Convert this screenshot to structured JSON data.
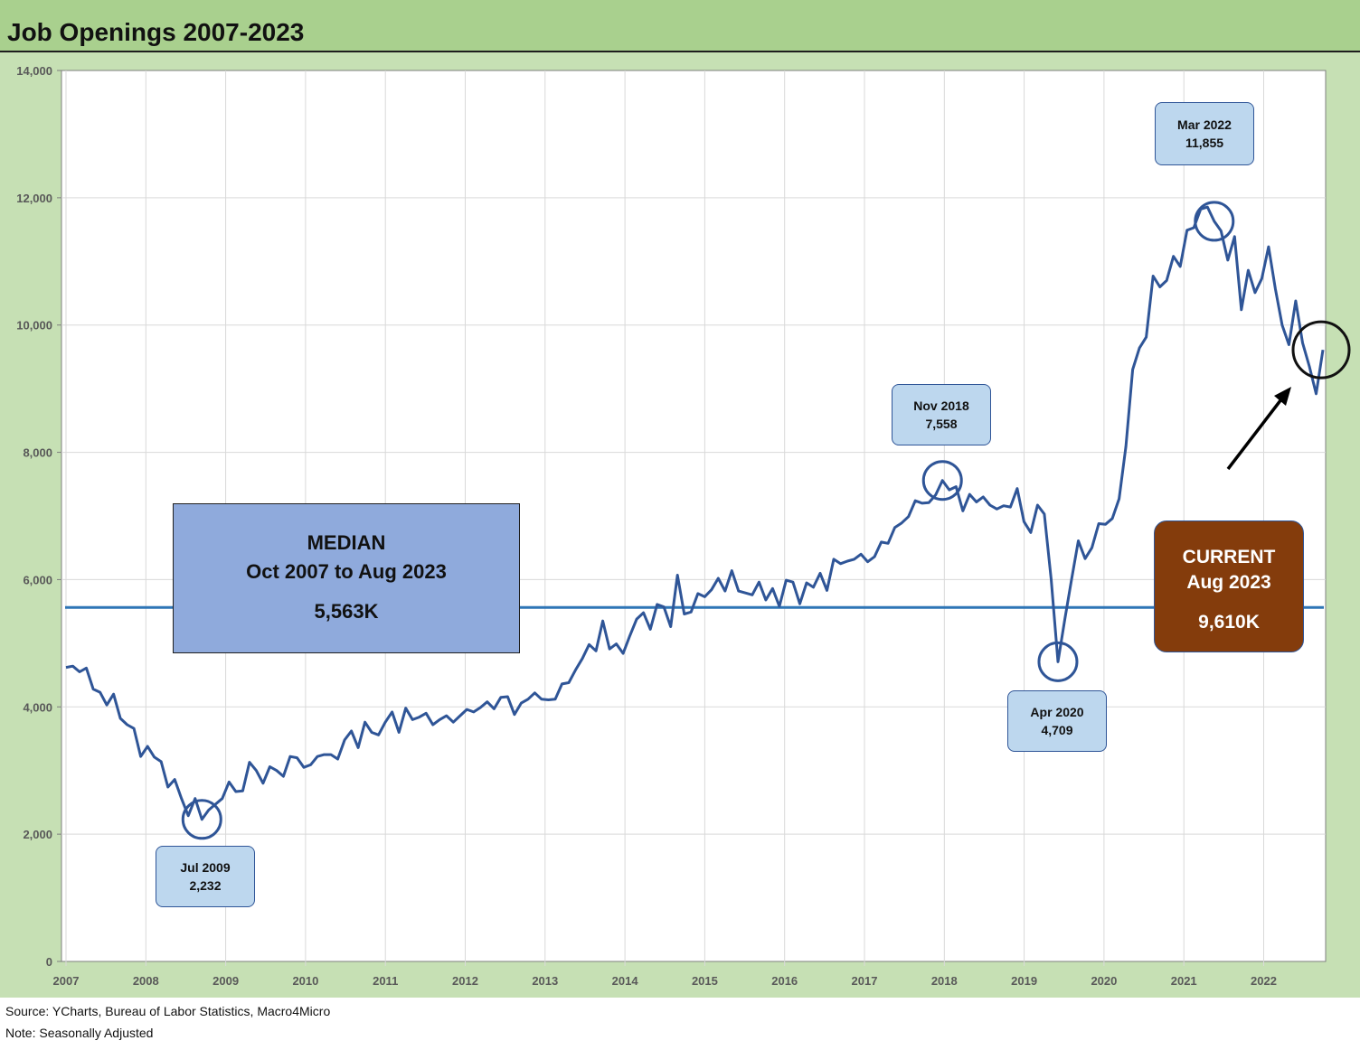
{
  "title": "Job Openings 2007-2023",
  "colors": {
    "line": "#2f5597",
    "median_line": "#2e75b6",
    "plot_bg": "#ffffff",
    "chart_bg": "#c6e0b4",
    "title_bg": "#a9d08e",
    "callout_bg": "#bdd7ee",
    "median_box_bg": "#8faadc",
    "current_box_bg": "#843c0c"
  },
  "chart_data": {
    "type": "line",
    "title": "Job Openings 2007-2023",
    "xlabel": "",
    "ylabel": "",
    "ylim": [
      0,
      14000
    ],
    "yticks": [
      "0",
      "2,000",
      "4,000",
      "6,000",
      "8,000",
      "10,000",
      "12,000",
      "14,000"
    ],
    "ytick_values": [
      0,
      2000,
      4000,
      6000,
      8000,
      10000,
      12000,
      14000
    ],
    "xticks": [
      "2007",
      "2008",
      "2009",
      "2010",
      "2011",
      "2012",
      "2013",
      "2014",
      "2015",
      "2016",
      "2017",
      "2018",
      "2019",
      "2020",
      "2021",
      "2022"
    ],
    "grid": true,
    "x_start": "2007-10",
    "x_end": "2023-08",
    "series": [
      {
        "values": [
          4620,
          4640,
          4550,
          4610,
          4280,
          4230,
          4030,
          4200,
          3820,
          3720,
          3660,
          3220,
          3380,
          3210,
          3140,
          2740,
          2860,
          2560,
          2290,
          2560,
          2232,
          2380,
          2470,
          2560,
          2820,
          2670,
          2680,
          3130,
          3000,
          2800,
          3060,
          3000,
          2910,
          3220,
          3200,
          3050,
          3090,
          3220,
          3250,
          3250,
          3180,
          3480,
          3620,
          3360,
          3760,
          3600,
          3560,
          3760,
          3920,
          3600,
          3980,
          3800,
          3840,
          3900,
          3720,
          3800,
          3860,
          3760,
          3860,
          3960,
          3920,
          3990,
          4080,
          3970,
          4150,
          4160,
          3880,
          4060,
          4120,
          4220,
          4120,
          4110,
          4120,
          4360,
          4380,
          4580,
          4760,
          4980,
          4880,
          5350,
          4910,
          4990,
          4840,
          5120,
          5380,
          5480,
          5220,
          5610,
          5570,
          5260,
          6070,
          5460,
          5490,
          5780,
          5730,
          5840,
          6020,
          5820,
          6140,
          5820,
          5790,
          5760,
          5960,
          5680,
          5860,
          5580,
          5990,
          5960,
          5620,
          5950,
          5880,
          6100,
          5830,
          6320,
          6250,
          6290,
          6320,
          6400,
          6280,
          6360,
          6590,
          6570,
          6820,
          6890,
          6990,
          7240,
          7200,
          7210,
          7330,
          7558,
          7410,
          7460,
          7080,
          7340,
          7220,
          7300,
          7170,
          7110,
          7160,
          7140,
          7430,
          6910,
          6740,
          7170,
          7030,
          6000,
          4709,
          5370,
          6000,
          6610,
          6330,
          6500,
          6880,
          6870,
          6960,
          7270,
          8090,
          9300,
          9640,
          9810,
          10770,
          10600,
          10700,
          11080,
          10920,
          11490,
          11530,
          11820,
          11855,
          11630,
          11480,
          11020,
          11390,
          10240,
          10860,
          10510,
          10730,
          11230,
          10570,
          10000,
          9690,
          10380,
          9720,
          9350,
          8920,
          9610
        ]
      }
    ],
    "median": 5563,
    "annotations": [
      {
        "label": "Jul 2009",
        "value": "2,232",
        "index": 20
      },
      {
        "label": "Nov 2018",
        "value": "7,558",
        "index": 129
      },
      {
        "label": "Apr 2020",
        "value": "4,709",
        "index": 146
      },
      {
        "label": "Mar 2022",
        "value": "11,855",
        "index": 169
      }
    ],
    "median_box": {
      "line1": "MEDIAN",
      "line2": "Oct 2007 to Aug 2023",
      "line3": "5,563K"
    },
    "current_box": {
      "line1": "CURRENT",
      "line2": "Aug 2023",
      "line3": "9,610K"
    }
  },
  "footer": {
    "source": "Source: YCharts, Bureau of Labor Statistics, Macro4Micro",
    "note": "Note: Seasonally Adjusted"
  }
}
